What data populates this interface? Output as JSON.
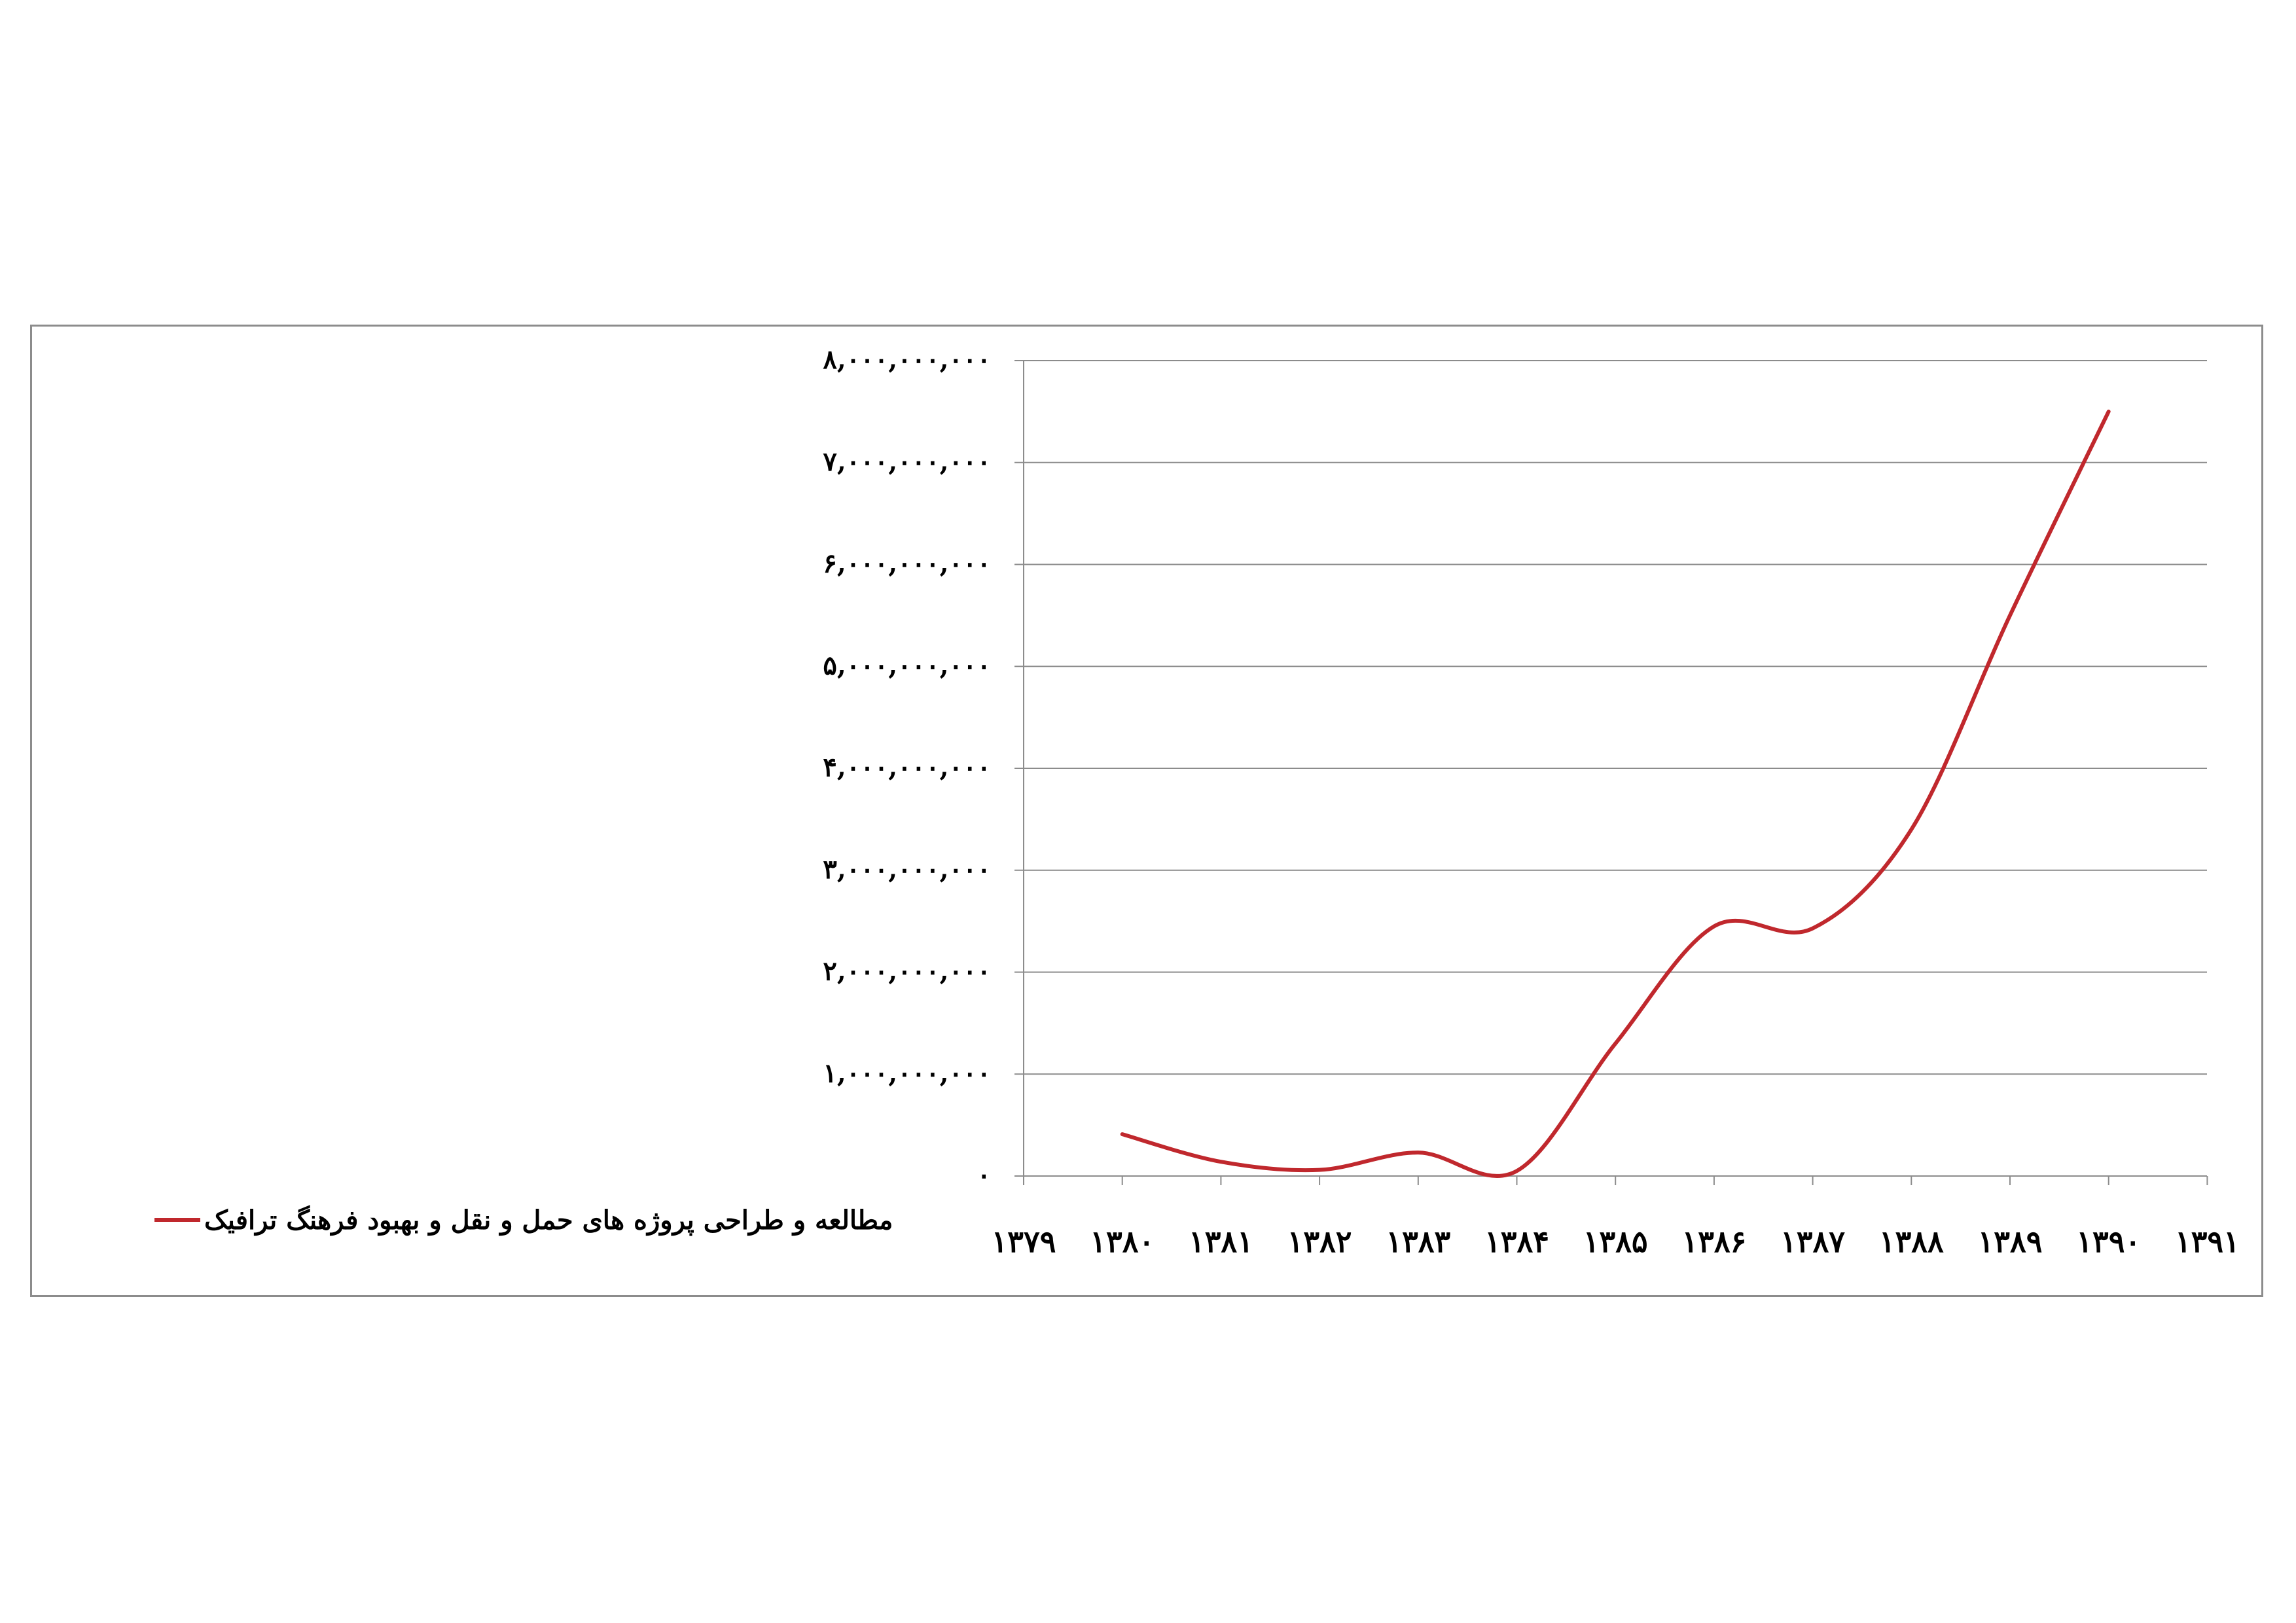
{
  "chart_data": {
    "type": "line",
    "x": [
      "۱۳۷۹",
      "۱۳۸۰",
      "۱۳۸۱",
      "۱۳۸۲",
      "۱۳۸۳",
      "۱۳۸۴",
      "۱۳۸۵",
      "۱۳۸۶",
      "۱۳۸۷",
      "۱۳۸۸",
      "۱۳۸۹",
      "۱۳۹۰",
      "۱۳۹۱"
    ],
    "series": [
      {
        "name": "مطالعه و طراحی پروژه های حمل و نقل و بهبود فرهنگ ترافیک",
        "color": "#c0282d",
        "values": [
          null,
          410000000,
          140000000,
          60000000,
          230000000,
          50000000,
          1300000000,
          2450000000,
          2430000000,
          3400000000,
          5500000000,
          7500000000,
          null
        ]
      }
    ],
    "yticks": [
      {
        "value": 0,
        "label": "۰"
      },
      {
        "value": 1000000000,
        "label": "۱,۰۰۰,۰۰۰,۰۰۰"
      },
      {
        "value": 2000000000,
        "label": "۲,۰۰۰,۰۰۰,۰۰۰"
      },
      {
        "value": 3000000000,
        "label": "۳,۰۰۰,۰۰۰,۰۰۰"
      },
      {
        "value": 4000000000,
        "label": "۴,۰۰۰,۰۰۰,۰۰۰"
      },
      {
        "value": 5000000000,
        "label": "۵,۰۰۰,۰۰۰,۰۰۰"
      },
      {
        "value": 6000000000,
        "label": "۶,۰۰۰,۰۰۰,۰۰۰"
      },
      {
        "value": 7000000000,
        "label": "۷,۰۰۰,۰۰۰,۰۰۰"
      },
      {
        "value": 8000000000,
        "label": "۸,۰۰۰,۰۰۰,۰۰۰"
      }
    ],
    "ylim": [
      0,
      8000000000
    ],
    "grid": true,
    "legend_position": "left",
    "smooth": true,
    "gridline_color": "#8c8c8c",
    "axis_color": "#8c8c8c"
  }
}
